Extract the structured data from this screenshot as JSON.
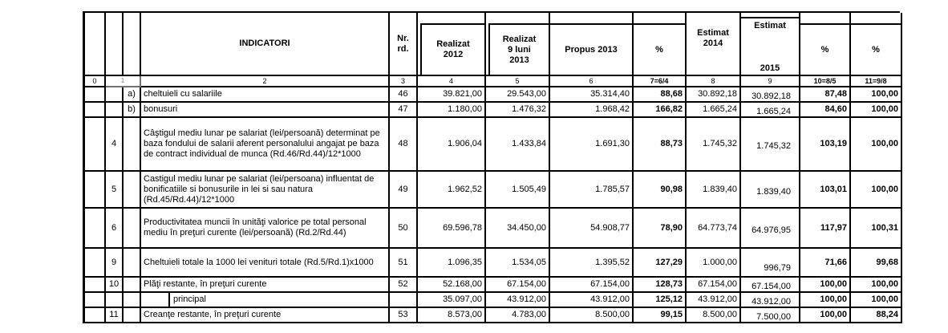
{
  "page": {
    "background": "#ffffff",
    "border_color": "#000000"
  },
  "header": {
    "indicatori": "INDICATORI",
    "nr_rd": "Nr.\nrd.",
    "realizat_2012": "Realizat\n2012",
    "realizat_9luni_2013": "Realizat\n9 luni\n2013",
    "propus_2013": "Propus 2013",
    "pct_7": "%",
    "estimat_2014": "Estimat\n2014",
    "estimat_2015_top": "Estimat",
    "estimat_2015_bottom": "2015",
    "pct_10": "%",
    "pct_11": "%"
  },
  "column_numbers": [
    "0",
    "1",
    "2",
    "3",
    "4",
    "5",
    "6",
    "7=6/4",
    "8",
    "9",
    "10=8/5",
    "11=9/8"
  ],
  "rows": [
    {
      "num": "",
      "letter": "a)",
      "indicator": "cheltuieli cu salariile",
      "nr": "46",
      "values": [
        "39.821,00",
        "29.543,00",
        "35.314,40",
        "88,68",
        "30.892,18",
        "30.892,18",
        "87,48",
        "100,00"
      ]
    },
    {
      "num": "",
      "letter": "b)",
      "indicator": "bonusuri",
      "nr": "47",
      "values": [
        "1.180,00",
        "1.476,32",
        "1.968,42",
        "166,82",
        "1.665,24",
        "1.665,24",
        "84,60",
        "100,00"
      ]
    },
    {
      "num": "4",
      "letter": "",
      "indicator": "Câştigul mediu lunar pe salariat (lei/persoană) determinat pe baza fondului de salarii aferent personalului angajat  pe baza de contract individual de munca (Rd.46/Rd.44)/12*1000",
      "nr": "48",
      "values": [
        "1.906,04",
        "1.433,84",
        "1.691,30",
        "88,73",
        "1.745,32",
        "1.745,32",
        "103,19",
        "100,00"
      ]
    },
    {
      "num": "5",
      "letter": "",
      "indicator": "Castigul mediu lunar pe salariat (lei/persoana) influentat de bonificatiile si bonusurile in lei si sau natura (Rd.45/Rd.44)/12*1000",
      "nr": "49",
      "values": [
        "1.962,52",
        "1.505,49",
        "1.785,57",
        "90,98",
        "1.839,40",
        "1.839,40",
        "103,01",
        "100,00"
      ]
    },
    {
      "num": "6",
      "letter": "",
      "indicator": "Productivitatea muncii în unităţi valorice pe total personal mediu în preţuri curente (lei/persoană) (Rd.2/Rd.44)",
      "nr": "50",
      "values": [
        "69.596,78",
        "34.450,00",
        "54.908,77",
        "78,90",
        "64.773,74",
        "64.976,95",
        "117,97",
        "100,31"
      ]
    },
    {
      "num": "9",
      "letter": "",
      "indicator": "Cheltuieli totale la 1000 lei venituri totale (Rd.5/Rd.1)x1000",
      "nr": "51",
      "e2015_low": true,
      "values": [
        "1.096,35",
        "1.534,05",
        "1.395,52",
        "127,29",
        "1.000,00",
        "996,79",
        "71,66",
        "99,68"
      ]
    },
    {
      "num": "10",
      "letter": "",
      "indicator": "Plăţi restante, în preţuri curente",
      "nr": "52",
      "values": [
        "52.168,00",
        "67.154,00",
        "67.154,00",
        "128,73",
        "67.154,00",
        "67.154,00",
        "100,00",
        "100,00"
      ]
    },
    {
      "num": "",
      "letter": "",
      "indicator": "principal",
      "indent": true,
      "nr": "",
      "values": [
        "35.097,00",
        "43.912,00",
        "43.912,00",
        "125,12",
        "43.912,00",
        "43.912,00",
        "100,00",
        "100,00"
      ]
    },
    {
      "num": "11",
      "letter": "",
      "indicator": "Creanţe restante, în preţuri curente",
      "nr": "53",
      "values": [
        "8.573,00",
        "4.783,00",
        "8.500,00",
        "99,15",
        "8.500,00",
        "7.500,00",
        "100,00",
        "88,24"
      ]
    }
  ]
}
